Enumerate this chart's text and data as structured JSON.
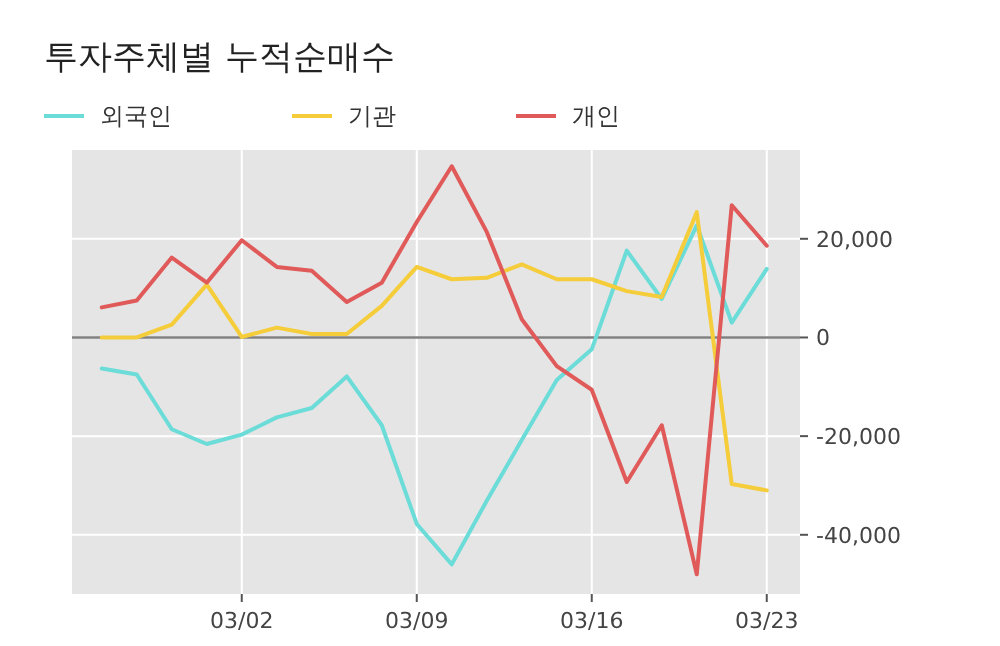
{
  "chart_data": {
    "type": "line",
    "title": "투자주체별 누적순매수",
    "categories": [
      null,
      null,
      null,
      null,
      "03/02",
      null,
      null,
      null,
      null,
      "03/09",
      null,
      null,
      null,
      null,
      "03/16",
      null,
      null,
      null,
      null,
      "03/23"
    ],
    "series": [
      {
        "name": "외국인",
        "color": "#6cdcd8",
        "values": [
          -6300,
          -7500,
          -18600,
          -21600,
          -19700,
          -16200,
          -14300,
          -7900,
          -17800,
          -37800,
          -46000,
          -33100,
          -20800,
          -8600,
          -2400,
          17600,
          7800,
          22700,
          3000,
          13900
        ]
      },
      {
        "name": "기관",
        "color": "#f5cc3a",
        "values": [
          0,
          0,
          2600,
          10700,
          100,
          2000,
          700,
          700,
          6400,
          14300,
          11800,
          12100,
          14800,
          11800,
          11800,
          9400,
          8200,
          25400,
          -29700,
          -31000
        ]
      },
      {
        "name": "개인",
        "color": "#e05a5a",
        "values": [
          6100,
          7500,
          16200,
          11100,
          19700,
          14300,
          13500,
          7200,
          11100,
          23400,
          34700,
          21400,
          3700,
          -5800,
          -10600,
          -29300,
          -17800,
          -48000,
          26800,
          18600
        ]
      }
    ],
    "ylim": [
      -52000,
      38000
    ],
    "yticks": [
      {
        "value": -40000,
        "label": "-40,000"
      },
      {
        "value": -20000,
        "label": "-20,000"
      },
      0,
      {
        "value": 20000,
        "label": "20,000"
      }
    ],
    "ref_lines": [
      {
        "axis": "y",
        "value": 0,
        "color": "#808080"
      }
    ],
    "grid": true,
    "legend": "top",
    "line_style": "solid",
    "marker": "none"
  }
}
